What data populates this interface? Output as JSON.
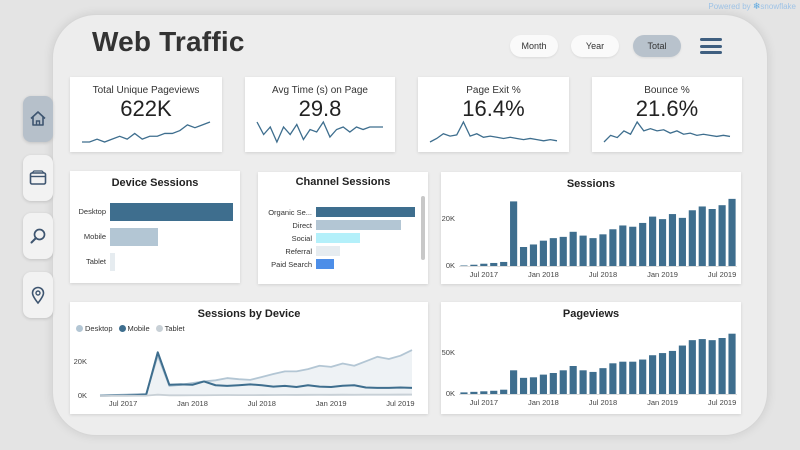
{
  "powered_by": "Powered by",
  "powered_brand": "snowflake",
  "title": "Web Traffic",
  "filters": [
    "Month",
    "Year",
    "Total"
  ],
  "active_filter": "Total",
  "nav": [
    "home",
    "wallet",
    "search",
    "location"
  ],
  "kpis": [
    {
      "label": "Total Unique Pageviews",
      "value": "622K",
      "spark": [
        3,
        3,
        4,
        3,
        4,
        5,
        4,
        6,
        4,
        5,
        5,
        6,
        6,
        7,
        9,
        8,
        9,
        10
      ]
    },
    {
      "label": "Avg Time (s) on Page",
      "value": "29.8",
      "spark": [
        14,
        9,
        12,
        6,
        12,
        9,
        13,
        7,
        11,
        10,
        14,
        8,
        11,
        12,
        10,
        12,
        11,
        12,
        12,
        12
      ]
    },
    {
      "label": "Page Exit %",
      "value": "16.4%",
      "spark": [
        2,
        5,
        9,
        7,
        8,
        19,
        7,
        9,
        6,
        7,
        6,
        5,
        6,
        5,
        4,
        5,
        4,
        3,
        4,
        3
      ]
    },
    {
      "label": "Bounce %",
      "value": "21.6%",
      "spark": [
        2,
        8,
        6,
        12,
        9,
        20,
        12,
        14,
        12,
        13,
        10,
        12,
        9,
        10,
        8,
        9,
        8,
        7,
        8,
        7
      ]
    }
  ],
  "colors": {
    "navy": "#3e6e8e",
    "light_steel": "#b3c6d4",
    "pale": "#e6ecf0",
    "light_cyan": "#b4f0fa",
    "blue": "#4d8ee8",
    "gray": "#c8c8c8"
  },
  "device_sessions": {
    "title": "Device Sessions",
    "bars": [
      {
        "label": "Desktop",
        "value": 1.0,
        "color": "#3e6e8e"
      },
      {
        "label": "Mobile",
        "value": 0.39,
        "color": "#b3c6d4"
      },
      {
        "label": "Tablet",
        "value": 0.04,
        "color": "#e6ecf0"
      }
    ]
  },
  "channel_sessions": {
    "title": "Channel Sessions",
    "bars": [
      {
        "label": "Organic Se...",
        "value": 1.0,
        "color": "#3e6e8e"
      },
      {
        "label": "Direct",
        "value": 0.86,
        "color": "#b3c6d4"
      },
      {
        "label": "Social",
        "value": 0.44,
        "color": "#b4f0fa"
      },
      {
        "label": "Referral",
        "value": 0.24,
        "color": "#e6ecf0"
      },
      {
        "label": "Paid Search",
        "value": 0.18,
        "color": "#4d8ee8"
      }
    ]
  },
  "sessions_chart": {
    "title": "Sessions",
    "yticks": [
      "20K",
      "0K"
    ],
    "xticks": [
      "Jul 2017",
      "Jan 2018",
      "Jul 2018",
      "Jan 2019",
      "Jul 2019"
    ]
  },
  "sessions_by_device": {
    "title": "Sessions by Device",
    "legend": [
      "Desktop",
      "Mobile",
      "Tablet"
    ],
    "yticks": [
      "20K",
      "0K"
    ],
    "xticks": [
      "Jul 2017",
      "Jan 2018",
      "Jul 2018",
      "Jan 2019",
      "Jul 2019"
    ]
  },
  "pageviews_chart": {
    "title": "Pageviews",
    "yticks": [
      "50K",
      "0K"
    ],
    "xticks": [
      "Jul 2017",
      "Jan 2018",
      "Jul 2018",
      "Jan 2019",
      "Jul 2019"
    ]
  },
  "chart_data": [
    {
      "type": "bar",
      "title": "Device Sessions",
      "categories": [
        "Desktop",
        "Mobile",
        "Tablet"
      ],
      "values": [
        1.0,
        0.39,
        0.04
      ]
    },
    {
      "type": "bar",
      "title": "Channel Sessions",
      "categories": [
        "Organic Se...",
        "Direct",
        "Social",
        "Referral",
        "Paid Search"
      ],
      "values": [
        1.0,
        0.86,
        0.44,
        0.24,
        0.18
      ]
    },
    {
      "type": "bar",
      "title": "Sessions",
      "x": [
        "2017-05",
        "2017-06",
        "2017-07",
        "2017-08",
        "2017-09",
        "2017-10",
        "2017-11",
        "2017-12",
        "2018-01",
        "2018-02",
        "2018-03",
        "2018-04",
        "2018-05",
        "2018-06",
        "2018-07",
        "2018-08",
        "2018-09",
        "2018-10",
        "2018-11",
        "2018-12",
        "2019-01",
        "2019-02",
        "2019-03",
        "2019-04",
        "2019-05",
        "2019-06",
        "2019-07",
        "2019-08"
      ],
      "values": [
        200,
        500,
        900,
        1200,
        1600,
        25500,
        7500,
        8500,
        10000,
        11000,
        11500,
        13500,
        12000,
        11000,
        12500,
        14500,
        16000,
        15500,
        17000,
        19500,
        18500,
        20500,
        19000,
        22000,
        23500,
        22500,
        24000,
        26500
      ],
      "ylim": [
        0,
        30000
      ]
    },
    {
      "type": "line",
      "title": "Sessions by Device",
      "x": [
        "2017-05",
        "2017-06",
        "2017-07",
        "2017-08",
        "2017-09",
        "2017-10",
        "2017-11",
        "2017-12",
        "2018-01",
        "2018-02",
        "2018-03",
        "2018-04",
        "2018-05",
        "2018-06",
        "2018-07",
        "2018-08",
        "2018-09",
        "2018-10",
        "2018-11",
        "2018-12",
        "2019-01",
        "2019-02",
        "2019-03",
        "2019-04",
        "2019-05",
        "2019-06",
        "2019-07",
        "2019-08"
      ],
      "series": [
        {
          "name": "Desktop",
          "values": [
            200,
            400,
            600,
            800,
            1000,
            18000,
            4500,
            5000,
            5800,
            6500,
            7000,
            8000,
            7500,
            7200,
            8500,
            9800,
            11000,
            11000,
            12000,
            13500,
            13000,
            14500,
            13500,
            15500,
            17500,
            16500,
            18000,
            20500
          ]
        },
        {
          "name": "Mobile",
          "values": [
            100,
            200,
            300,
            400,
            600,
            19500,
            5000,
            5200,
            5000,
            6500,
            4800,
            4500,
            4800,
            5200,
            4800,
            4200,
            4500,
            4000,
            4800,
            4200,
            4000,
            4600,
            4800,
            3800,
            3600,
            3600,
            3800,
            3600
          ]
        },
        {
          "name": "Tablet",
          "values": [
            0,
            50,
            80,
            100,
            150,
            600,
            300,
            300,
            350,
            350,
            400,
            450,
            400,
            380,
            420,
            450,
            500,
            480,
            520,
            560,
            540,
            580,
            560,
            600,
            620,
            600,
            640,
            680
          ]
        }
      ],
      "ylim": [
        0,
        25000
      ]
    },
    {
      "type": "bar",
      "title": "Pageviews",
      "x": [
        "2017-05",
        "2017-06",
        "2017-07",
        "2017-08",
        "2017-09",
        "2017-10",
        "2017-11",
        "2017-12",
        "2018-01",
        "2018-02",
        "2018-03",
        "2018-04",
        "2018-05",
        "2018-06",
        "2018-07",
        "2018-08",
        "2018-09",
        "2018-10",
        "2018-11",
        "2018-12",
        "2019-01",
        "2019-02",
        "2019-03",
        "2019-04",
        "2019-05",
        "2019-06",
        "2019-07",
        "2019-08"
      ],
      "values": [
        1500,
        2000,
        2500,
        3000,
        4000,
        22000,
        15000,
        15500,
        18000,
        19500,
        22000,
        26000,
        22000,
        20500,
        24000,
        28500,
        30000,
        30000,
        32000,
        36000,
        38000,
        40000,
        45000,
        50000,
        51000,
        50000,
        52000,
        56000
      ],
      "ylim": [
        0,
        65000
      ]
    }
  ]
}
